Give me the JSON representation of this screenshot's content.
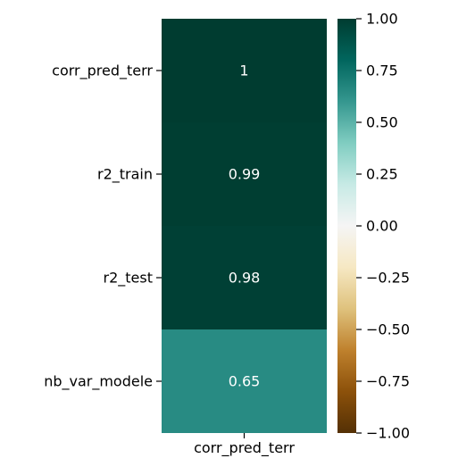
{
  "chart_data": {
    "type": "heatmap",
    "rows": [
      "corr_pred_terr",
      "r2_train",
      "r2_test",
      "nb_var_modele"
    ],
    "columns": [
      "corr_pred_terr"
    ],
    "values": [
      [
        1.0
      ],
      [
        0.99
      ],
      [
        0.98
      ],
      [
        0.65
      ]
    ],
    "cell_labels": [
      [
        "1"
      ],
      [
        "0.99"
      ],
      [
        "0.98"
      ],
      [
        "0.65"
      ]
    ],
    "colormap": "BrBG",
    "color_range": [
      -1.0,
      1.0
    ],
    "colorbar_ticks": [
      1.0,
      0.75,
      0.5,
      0.25,
      0.0,
      -0.25,
      -0.5,
      -0.75,
      -1.0
    ],
    "colorbar_tick_labels": [
      "1.00",
      "0.75",
      "0.50",
      "0.25",
      "0.00",
      "−0.25",
      "−0.50",
      "−0.75",
      "−1.00"
    ],
    "colors": {
      "cell_text": "#ffffff",
      "tick": "#000000"
    }
  }
}
